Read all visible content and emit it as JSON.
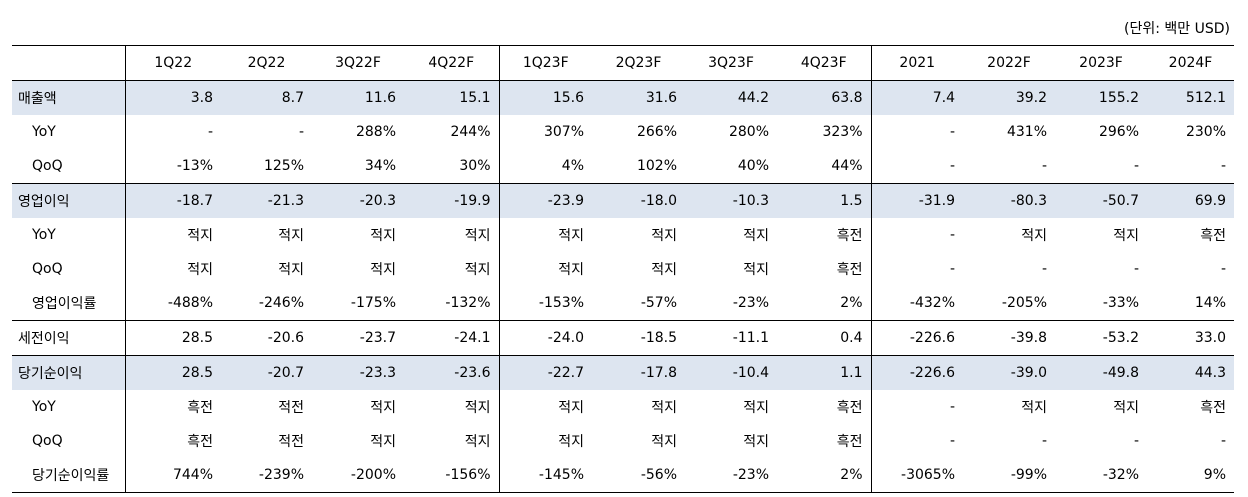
{
  "unit_note": "(단위: 백만 USD)",
  "headers": [
    "",
    "1Q22",
    "2Q22",
    "3Q22F",
    "4Q22F",
    "1Q23F",
    "2Q23F",
    "3Q23F",
    "4Q23F",
    "2021",
    "2022F",
    "2023F",
    "2024F"
  ],
  "rows": [
    {
      "label": "매출액",
      "sub": false,
      "highlight": true,
      "group_start": false,
      "values": [
        "3.8",
        "8.7",
        "11.6",
        "15.1",
        "15.6",
        "31.6",
        "44.2",
        "63.8",
        "7.4",
        "39.2",
        "155.2",
        "512.1"
      ]
    },
    {
      "label": "YoY",
      "sub": true,
      "highlight": false,
      "group_start": false,
      "values": [
        "-",
        "-",
        "288%",
        "244%",
        "307%",
        "266%",
        "280%",
        "323%",
        "-",
        "431%",
        "296%",
        "230%"
      ]
    },
    {
      "label": "QoQ",
      "sub": true,
      "highlight": false,
      "group_start": false,
      "values": [
        "-13%",
        "125%",
        "34%",
        "30%",
        "4%",
        "102%",
        "40%",
        "44%",
        "-",
        "-",
        "-",
        "-"
      ]
    },
    {
      "label": "영업이익",
      "sub": false,
      "highlight": true,
      "group_start": true,
      "values": [
        "-18.7",
        "-21.3",
        "-20.3",
        "-19.9",
        "-23.9",
        "-18.0",
        "-10.3",
        "1.5",
        "-31.9",
        "-80.3",
        "-50.7",
        "69.9"
      ]
    },
    {
      "label": "YoY",
      "sub": true,
      "highlight": false,
      "group_start": false,
      "values": [
        "적지",
        "적지",
        "적지",
        "적지",
        "적지",
        "적지",
        "적지",
        "흑전",
        "-",
        "적지",
        "적지",
        "흑전"
      ]
    },
    {
      "label": "QoQ",
      "sub": true,
      "highlight": false,
      "group_start": false,
      "values": [
        "적지",
        "적지",
        "적지",
        "적지",
        "적지",
        "적지",
        "적지",
        "흑전",
        "-",
        "-",
        "-",
        "-"
      ]
    },
    {
      "label": "영업이익률",
      "sub": true,
      "highlight": false,
      "group_start": false,
      "values": [
        "-488%",
        "-246%",
        "-175%",
        "-132%",
        "-153%",
        "-57%",
        "-23%",
        "2%",
        "-432%",
        "-205%",
        "-33%",
        "14%"
      ]
    },
    {
      "label": "세전이익",
      "sub": false,
      "highlight": false,
      "group_start": true,
      "values": [
        "28.5",
        "-20.6",
        "-23.7",
        "-24.1",
        "-24.0",
        "-18.5",
        "-11.1",
        "0.4",
        "-226.6",
        "-39.8",
        "-53.2",
        "33.0"
      ]
    },
    {
      "label": "당기순이익",
      "sub": false,
      "highlight": true,
      "group_start": true,
      "values": [
        "28.5",
        "-20.7",
        "-23.3",
        "-23.6",
        "-22.7",
        "-17.8",
        "-10.4",
        "1.1",
        "-226.6",
        "-39.0",
        "-49.8",
        "44.3"
      ]
    },
    {
      "label": "YoY",
      "sub": true,
      "highlight": false,
      "group_start": false,
      "values": [
        "흑전",
        "적전",
        "적지",
        "적지",
        "적지",
        "적지",
        "적지",
        "흑전",
        "-",
        "적지",
        "적지",
        "흑전"
      ]
    },
    {
      "label": "QoQ",
      "sub": true,
      "highlight": false,
      "group_start": false,
      "values": [
        "흑전",
        "적전",
        "적지",
        "적지",
        "적지",
        "적지",
        "적지",
        "흑전",
        "-",
        "-",
        "-",
        "-"
      ]
    },
    {
      "label": "당기순이익률",
      "sub": true,
      "highlight": false,
      "group_start": false,
      "values": [
        "744%",
        "-239%",
        "-200%",
        "-156%",
        "-145%",
        "-56%",
        "-23%",
        "2%",
        "-3065%",
        "-99%",
        "-32%",
        "9%"
      ]
    }
  ]
}
